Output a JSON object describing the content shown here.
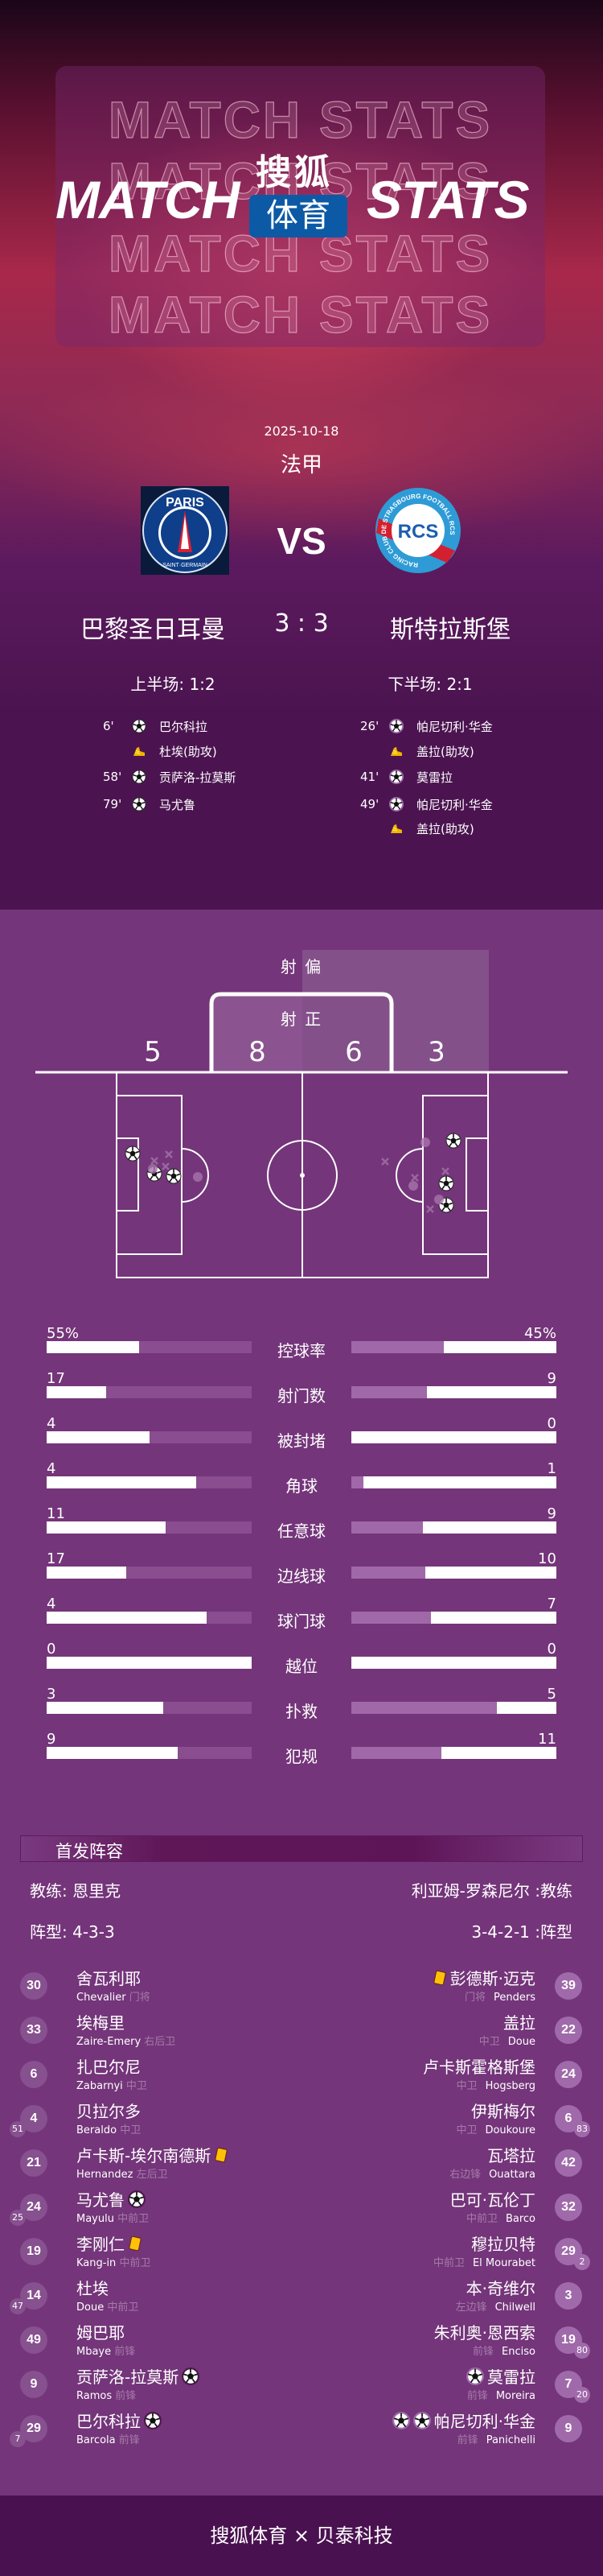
{
  "banner": {
    "title_left": "MATCH",
    "title_right": "STATS",
    "outline_text": "MATCH STATS",
    "logo_top": "搜狐",
    "logo_bottom": "体育",
    "logo_color": "#0c5aa6"
  },
  "match": {
    "date": "2025-10-18",
    "league": "法甲",
    "vs": "VS",
    "home": "巴黎圣日耳曼",
    "away": "斯特拉斯堡",
    "score": "3 : 3",
    "first_half": "上半场: 1:2",
    "second_half": "下半场: 2:1",
    "home_logo_text": "PARIS SAINT-GERMAIN",
    "away_logo_text": "RACING CLUB DE STRASBOURG FOOTBALL RCS"
  },
  "events": {
    "home": [
      {
        "minute": "6'",
        "type": "goal",
        "player": "巴尔科拉"
      },
      {
        "minute": "",
        "type": "assist",
        "player": "杜埃(助攻)"
      },
      {
        "minute": "58'",
        "type": "goal",
        "player": "贡萨洛-拉莫斯"
      },
      {
        "minute": "79'",
        "type": "goal",
        "player": "马尤鲁"
      }
    ],
    "away": [
      {
        "minute": "26'",
        "type": "goal",
        "player": "帕尼切利·华金"
      },
      {
        "minute": "",
        "type": "assist",
        "player": "盖拉(助攻)"
      },
      {
        "minute": "41'",
        "type": "goal",
        "player": "莫雷拉"
      },
      {
        "minute": "49'",
        "type": "goal",
        "player": "帕尼切利·华金"
      },
      {
        "minute": "",
        "type": "assist",
        "player": "盖拉(助攻)"
      }
    ]
  },
  "shots": {
    "off_label": "射 偏",
    "on_label": "射 正",
    "home_off": "5",
    "home_on": "8",
    "away_on": "6",
    "away_off": "3"
  },
  "stats": [
    {
      "label": "控球率",
      "home": "55%",
      "away": "45%",
      "home_fill": 0.45,
      "away_fill": 0.55
    },
    {
      "label": "射门数",
      "home": "17",
      "away": "9",
      "home_fill": 0.29,
      "away_fill": 0.63
    },
    {
      "label": "被封堵",
      "home": "4",
      "away": "0",
      "home_fill": 0.5,
      "away_fill": 1.0
    },
    {
      "label": "角球",
      "home": "4",
      "away": "1",
      "home_fill": 0.73,
      "away_fill": 0.94
    },
    {
      "label": "任意球",
      "home": "11",
      "away": "9",
      "home_fill": 0.58,
      "away_fill": 0.65
    },
    {
      "label": "边线球",
      "home": "17",
      "away": "10",
      "home_fill": 0.39,
      "away_fill": 0.64
    },
    {
      "label": "球门球",
      "home": "4",
      "away": "7",
      "home_fill": 0.78,
      "away_fill": 0.61
    },
    {
      "label": "越位",
      "home": "0",
      "away": "0",
      "home_fill": 1.0,
      "away_fill": 1.0
    },
    {
      "label": "扑救",
      "home": "3",
      "away": "5",
      "home_fill": 0.57,
      "away_fill": 0.29
    },
    {
      "label": "犯规",
      "home": "9",
      "away": "11",
      "home_fill": 0.64,
      "away_fill": 0.56
    }
  ],
  "lineup": {
    "title": "首发阵容",
    "home_coach": "教练: 恩里克",
    "away_coach": "利亚姆-罗森尼尔 :教练",
    "home_formation": "阵型: 4-3-3",
    "away_formation": "3-4-2-1 :阵型",
    "home": [
      {
        "num": "30",
        "name": "舍瓦利耶",
        "en": "Chevalier",
        "pos": "门将",
        "icons": [],
        "sub": ""
      },
      {
        "num": "33",
        "name": "埃梅里",
        "en": "Zaire-Emery",
        "pos": "右后卫",
        "icons": [],
        "sub": ""
      },
      {
        "num": "6",
        "name": "扎巴尔尼",
        "en": "Zabarnyi",
        "pos": "中卫",
        "icons": [],
        "sub": ""
      },
      {
        "num": "4",
        "name": "贝拉尔多",
        "en": "Beraldo",
        "pos": "中卫",
        "icons": [],
        "sub": "51"
      },
      {
        "num": "21",
        "name": "卢卡斯-埃尔南德斯",
        "en": "Hernandez",
        "pos": "左后卫",
        "icons": [
          "yellow-card"
        ],
        "sub": ""
      },
      {
        "num": "24",
        "name": "马尤鲁",
        "en": "Mayulu",
        "pos": "中前卫",
        "icons": [
          "goal"
        ],
        "sub": "25"
      },
      {
        "num": "19",
        "name": "李刚仁",
        "en": "Kang-in",
        "pos": "中前卫",
        "icons": [
          "yellow-card"
        ],
        "sub": ""
      },
      {
        "num": "14",
        "name": "杜埃",
        "en": "Doue",
        "pos": "中前卫",
        "icons": [],
        "sub": "47"
      },
      {
        "num": "49",
        "name": "姆巴耶",
        "en": "Mbaye",
        "pos": "前锋",
        "icons": [],
        "sub": ""
      },
      {
        "num": "9",
        "name": "贡萨洛-拉莫斯",
        "en": "Ramos",
        "pos": "前锋",
        "icons": [
          "goal"
        ],
        "sub": ""
      },
      {
        "num": "29",
        "name": "巴尔科拉",
        "en": "Barcola",
        "pos": "前锋",
        "icons": [
          "goal"
        ],
        "sub": "7"
      }
    ],
    "away": [
      {
        "num": "39",
        "name": "彭德斯·迈克",
        "en": "Penders",
        "pos": "门将",
        "icons": [
          "yellow-card"
        ],
        "sub": ""
      },
      {
        "num": "22",
        "name": "盖拉",
        "en": "Doue",
        "pos": "中卫",
        "icons": [],
        "sub": ""
      },
      {
        "num": "24",
        "name": "卢卡斯霍格斯堡",
        "en": "Hogsberg",
        "pos": "中卫",
        "icons": [],
        "sub": ""
      },
      {
        "num": "6",
        "name": "伊斯梅尔",
        "en": "Doukoure",
        "pos": "中卫",
        "icons": [],
        "sub": "83"
      },
      {
        "num": "42",
        "name": "瓦塔拉",
        "en": "Ouattara",
        "pos": "右边锋",
        "icons": [],
        "sub": ""
      },
      {
        "num": "32",
        "name": "巴可·瓦伦丁",
        "en": "Barco",
        "pos": "中前卫",
        "icons": [],
        "sub": ""
      },
      {
        "num": "29",
        "name": "穆拉贝特",
        "en": "El Mourabet",
        "pos": "中前卫",
        "icons": [],
        "sub": "2"
      },
      {
        "num": "3",
        "name": "本·奇维尔",
        "en": "Chilwell",
        "pos": "左边锋",
        "icons": [],
        "sub": ""
      },
      {
        "num": "19",
        "name": "朱利奥·恩西索",
        "en": "Enciso",
        "pos": "前锋",
        "icons": [],
        "sub": "80"
      },
      {
        "num": "7",
        "name": "莫雷拉",
        "en": "Moreira",
        "pos": "前锋",
        "icons": [
          "goal"
        ],
        "sub": "20"
      },
      {
        "num": "9",
        "name": "帕尼切利·华金",
        "en": "Panichelli",
        "pos": "前锋",
        "icons": [
          "goal",
          "goal"
        ],
        "sub": ""
      }
    ]
  },
  "footer": "搜狐体育 × 贝泰科技",
  "colors": {
    "stats_bg": "#74357a",
    "hero_bottom": "#4b1450",
    "footer_bg": "#4a1150",
    "home_track": "#8a4d8f",
    "away_track": "#a068a8",
    "home_num_bg": "#87508f",
    "away_num_bg": "#a06aaa",
    "yellow_card": "#ffc107"
  }
}
